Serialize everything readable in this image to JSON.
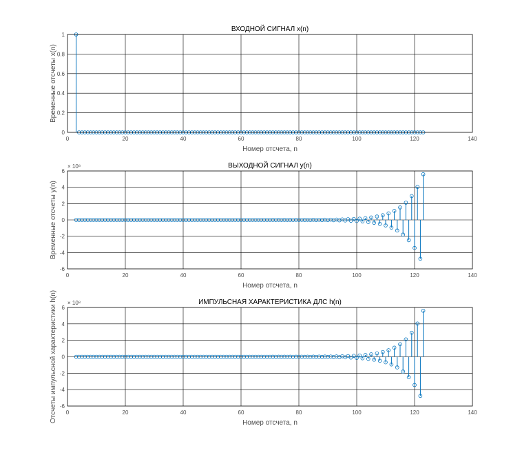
{
  "chart_data": [
    {
      "type": "stem",
      "title": "ВХОДНОЙ СИГНАЛ x(n)",
      "xlabel": "Номер отсчета, n",
      "ylabel": "Временные отсчеты x(n)",
      "xlim": [
        0,
        140
      ],
      "ylim": [
        0,
        1
      ],
      "xticks": [
        0,
        20,
        40,
        60,
        80,
        100,
        120,
        140
      ],
      "yticks": [
        0,
        0.2,
        0.4,
        0.6,
        0.8,
        1
      ],
      "ytick_labels": [
        "0",
        "0.2",
        "0.4",
        "0.6",
        "0.8",
        "1"
      ],
      "exponent_label": "",
      "grid": true,
      "series": [
        {
          "kind": "impulse",
          "n_start": 3,
          "n_end": 123,
          "impulse_at": 3,
          "impulse_value": 1
        }
      ]
    },
    {
      "type": "stem",
      "title": "ВЫХОДНОЙ СИГНАЛ y(n)",
      "xlabel": "Номер отсчета, n",
      "ylabel": "Временные отсчеты y(n)",
      "xlim": [
        0,
        140
      ],
      "ylim": [
        -6,
        6
      ],
      "xticks": [
        0,
        20,
        40,
        60,
        80,
        100,
        120,
        140
      ],
      "yticks": [
        -6,
        -4,
        -2,
        0,
        2,
        4,
        6
      ],
      "ytick_labels": [
        "-6",
        "-4",
        "-2",
        "0",
        "2",
        "4",
        "6"
      ],
      "exponent_label": "× 10⁸",
      "grid": true,
      "series": [
        {
          "kind": "alternating_growth",
          "n_start": 3,
          "n_end": 123,
          "last_value": 5.6,
          "ratio": -0.85
        }
      ]
    },
    {
      "type": "stem",
      "title": "ИМПУЛЬСНАЯ ХАРАКТЕРИСТИКА ДЛС h(n)",
      "xlabel": "Номер отсчета, n",
      "ylabel": "Отсчеты импульсной характеристики h(n)",
      "xlim": [
        0,
        140
      ],
      "ylim": [
        -6,
        6
      ],
      "xticks": [
        0,
        20,
        40,
        60,
        80,
        100,
        120,
        140
      ],
      "yticks": [
        -6,
        -4,
        -2,
        0,
        2,
        4,
        6
      ],
      "ytick_labels": [
        "-6",
        "-4",
        "-2",
        "0",
        "2",
        "4",
        "6"
      ],
      "exponent_label": "× 10⁸",
      "grid": true,
      "series": [
        {
          "kind": "alternating_growth",
          "n_start": 3,
          "n_end": 123,
          "last_value": 5.6,
          "ratio": -0.85
        }
      ]
    }
  ],
  "colors": {
    "stem": "#0072bd",
    "grid": "#000000",
    "axes": "#000000",
    "tick_text": "#4d4d4d"
  }
}
